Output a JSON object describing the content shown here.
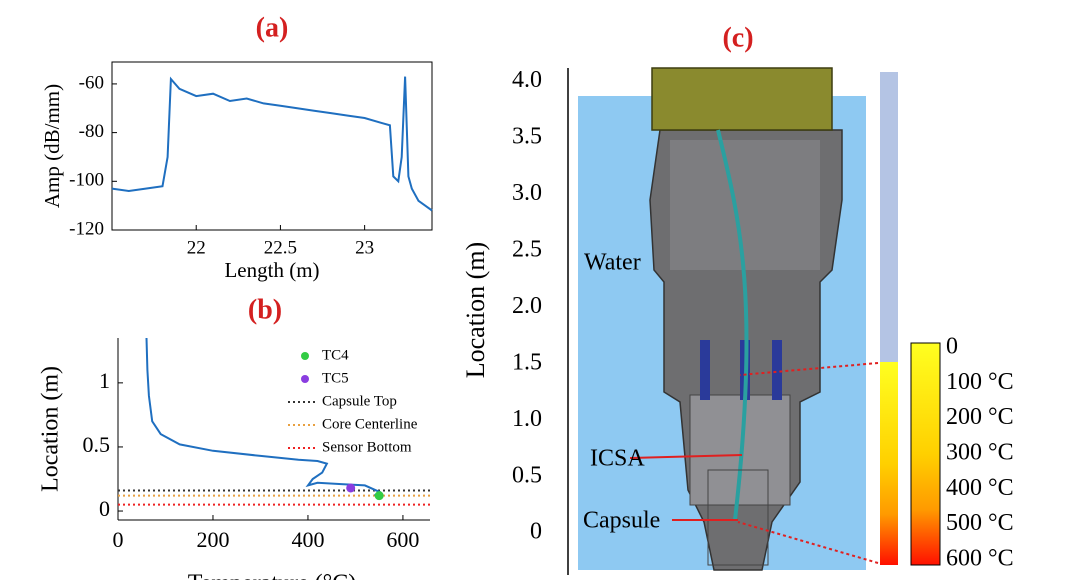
{
  "chart_data": [
    {
      "type": "line",
      "title": "(a)",
      "x_label": "Length (m)",
      "y_label": "Amp (dB/mm)",
      "xlim": [
        21.5,
        23.4
      ],
      "ylim": [
        -120,
        -51
      ],
      "xticks": [
        22,
        22.5,
        23
      ],
      "yticks": [
        -60,
        -80,
        -100,
        -120
      ],
      "series": [
        {
          "color": "#1f6fc0",
          "x": [
            21.5,
            21.6,
            21.7,
            21.8,
            21.83,
            21.85,
            21.9,
            22.0,
            22.1,
            22.2,
            22.3,
            22.4,
            22.5,
            22.6,
            22.7,
            22.8,
            22.9,
            23.0,
            23.1,
            23.15,
            23.17,
            23.2,
            23.22,
            23.24,
            23.26,
            23.28,
            23.32,
            23.36,
            23.4
          ],
          "values": [
            -103,
            -104,
            -103,
            -102,
            -90,
            -58,
            -62,
            -65,
            -64,
            -67,
            -66,
            -68,
            -69,
            -70,
            -71,
            -72,
            -73,
            -74,
            -76,
            -77,
            -98,
            -100,
            -90,
            -57,
            -98,
            -103,
            -108,
            -110,
            -112
          ]
        }
      ]
    },
    {
      "type": "line",
      "title": "(b)",
      "x_label": "Temperature (°C)",
      "y_label": "Location (m)",
      "xlim": [
        0,
        657
      ],
      "ylim": [
        -0.07,
        1.35
      ],
      "xticks": [
        0,
        200,
        400,
        600
      ],
      "yticks": [
        0,
        0.5,
        1
      ],
      "series": [
        {
          "color": "#1f6fc0",
          "x": [
            60,
            62,
            65,
            72,
            90,
            130,
            200,
            300,
            380,
            420,
            440,
            430,
            410,
            400,
            420,
            470,
            520,
            550,
            540
          ],
          "values": [
            1.35,
            1.1,
            0.9,
            0.7,
            0.6,
            0.52,
            0.47,
            0.43,
            0.4,
            0.39,
            0.37,
            0.3,
            0.25,
            0.2,
            0.22,
            0.21,
            0.2,
            0.15,
            0.12
          ]
        },
        {
          "name": "TC4",
          "type": "scatter",
          "color": "#33cc44",
          "x": [
            550
          ],
          "values": [
            0.12
          ]
        },
        {
          "name": "TC5",
          "type": "scatter",
          "color": "#8a3de0",
          "x": [
            490
          ],
          "values": [
            0.18
          ]
        }
      ],
      "hlines": [
        {
          "name": "Capsule Top",
          "value": 0.16,
          "color": "#333333"
        },
        {
          "name": "Core Centerline",
          "value": 0.12,
          "color": "#e8a040"
        },
        {
          "name": "Sensor Bottom",
          "value": 0.05,
          "color": "#ee2222"
        }
      ]
    },
    {
      "type": "diagram",
      "title": "(c)",
      "y_label": "Location  (m)",
      "ylim": [
        -0.37,
        4.12
      ],
      "yticks": [
        {
          "value": 4,
          "label": "4.0"
        },
        3.5,
        {
          "value": 3,
          "label": "3.0"
        },
        2.5,
        {
          "value": 2,
          "label": "2.0"
        },
        1.5,
        {
          "value": 1,
          "label": "1.0"
        },
        0.5,
        0
      ],
      "annotations": [
        "Water",
        "ICSA",
        "Capsule"
      ],
      "colorbar": {
        "lim": [
          0,
          600
        ],
        "ticks": [
          0,
          {
            "value": 100,
            "label": "100 °C"
          },
          {
            "value": 200,
            "label": "200 °C"
          },
          {
            "value": 300,
            "label": "300 °C"
          },
          {
            "value": 400,
            "label": "400 °C"
          },
          {
            "value": 500,
            "label": "500 °C"
          },
          {
            "value": 600,
            "label": "600 °C"
          }
        ]
      }
    }
  ]
}
